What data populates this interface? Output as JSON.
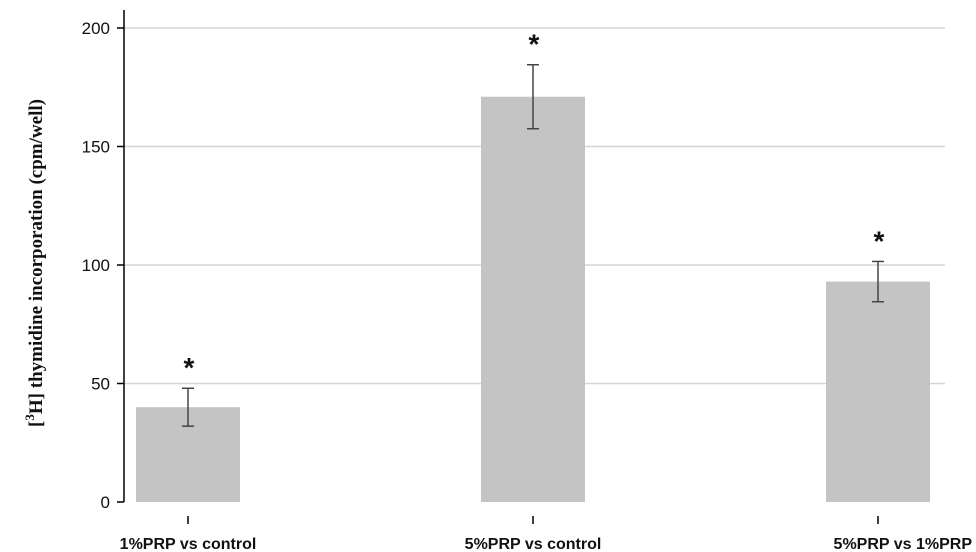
{
  "chart_data": {
    "type": "bar",
    "title": "",
    "xlabel": "",
    "ylabel": {
      "prefix": "[",
      "superscript": "3",
      "suffix": "H] thymidine incorporation (cpm/well)"
    },
    "categories": [
      "1%PRP vs control",
      "5%PRP vs control",
      "5%PRP vs 1%PRP"
    ],
    "values": [
      40,
      171,
      93
    ],
    "error": [
      8,
      13.5,
      8.5
    ],
    "annotations": [
      "*",
      "*",
      "*"
    ],
    "ylim": [
      0,
      200
    ],
    "yticks": [
      0,
      50,
      100,
      150,
      200
    ],
    "grid": true,
    "legend": "none",
    "colors": {
      "bar": "#c4c4c4",
      "error_bar": "#444444",
      "grid": "#d6d6d6",
      "axis": "#000000"
    }
  }
}
